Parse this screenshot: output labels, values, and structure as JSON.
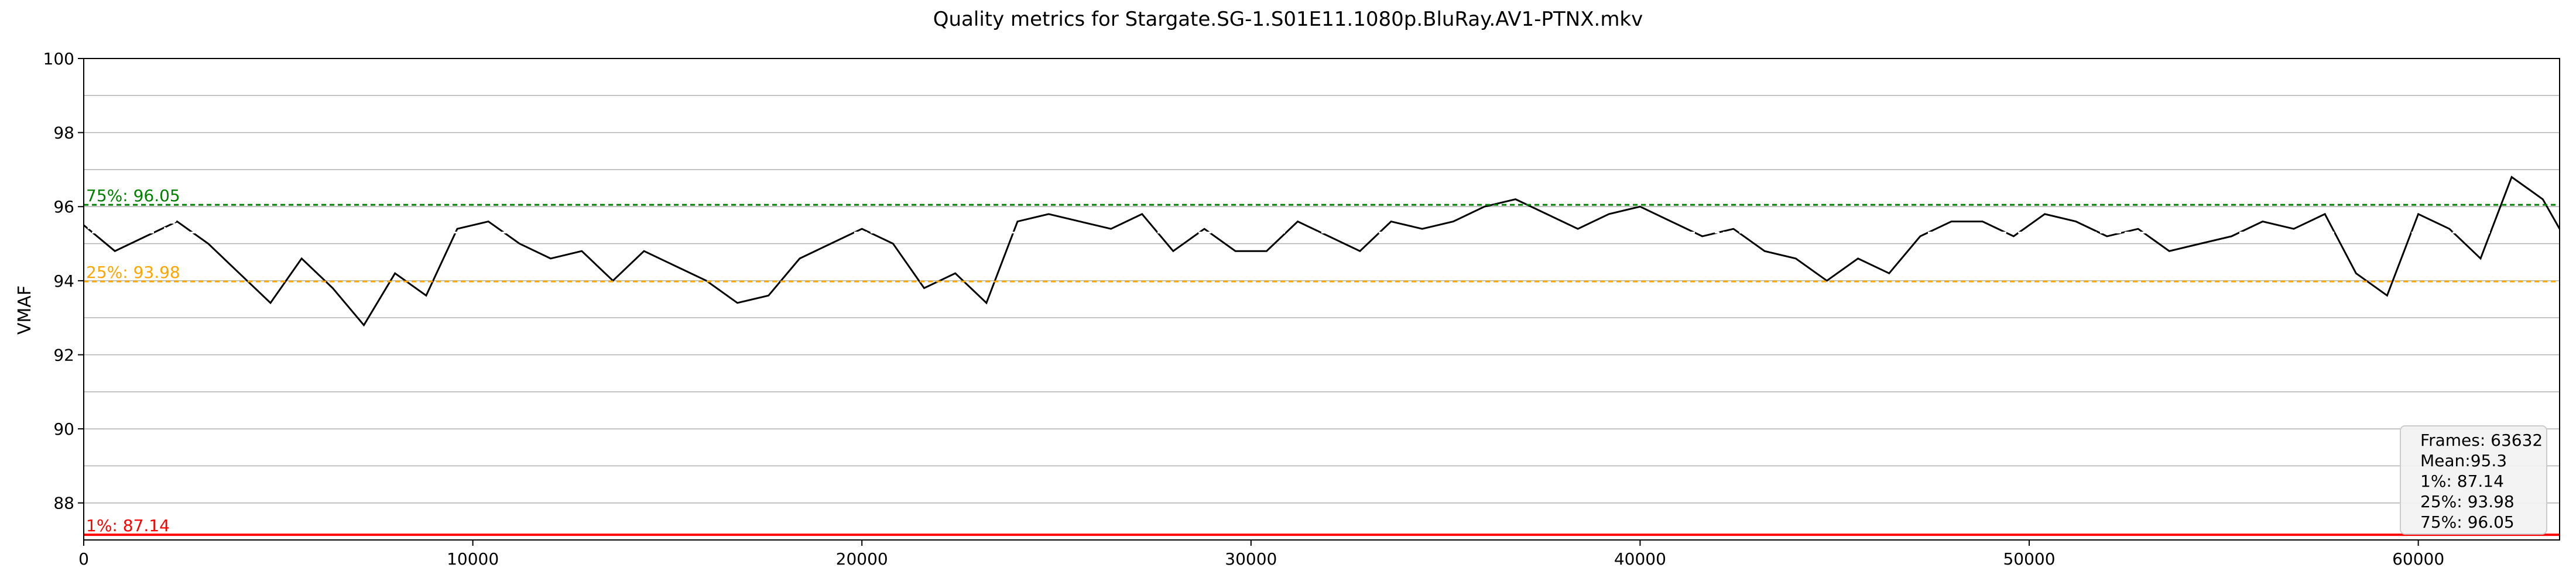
{
  "chart_data": {
    "type": "line",
    "title": "Quality metrics for Stargate.SG-1.S01E11.1080p.BluRay.AV1-PTNX.mkv",
    "xlabel": "",
    "ylabel": "VMAF",
    "xlim": [
      0,
      63632
    ],
    "ylim": [
      87,
      100
    ],
    "x_ticks": [
      0,
      10000,
      20000,
      30000,
      40000,
      50000,
      60000
    ],
    "y_ticks": [
      88,
      90,
      92,
      94,
      96,
      98,
      100
    ],
    "grid": true,
    "series": [
      {
        "color": "#000000",
        "x": [
          0,
          800,
          1600,
          2400,
          3200,
          4000,
          4800,
          5600,
          6400,
          7200,
          8000,
          8800,
          9600,
          10400,
          11200,
          12000,
          12800,
          13600,
          14400,
          15200,
          16000,
          16800,
          17600,
          18400,
          19200,
          20000,
          20800,
          21600,
          22400,
          23200,
          24000,
          24800,
          25600,
          26400,
          27200,
          28000,
          28800,
          29600,
          30400,
          31200,
          32000,
          32800,
          33600,
          34400,
          35200,
          36000,
          36800,
          37600,
          38400,
          39200,
          40000,
          40800,
          41600,
          42400,
          43200,
          44000,
          44800,
          45600,
          46400,
          47200,
          48000,
          48800,
          49600,
          50400,
          51200,
          52000,
          52800,
          53600,
          54400,
          55200,
          56000,
          56800,
          57600,
          58400,
          59200,
          60000,
          60800,
          61600,
          62400,
          63200,
          63632
        ],
        "y": [
          95.5,
          94.8,
          95.2,
          95.6,
          95.0,
          94.2,
          93.4,
          94.6,
          93.8,
          92.8,
          94.2,
          93.6,
          95.4,
          95.6,
          95.0,
          94.6,
          94.8,
          94.0,
          94.8,
          94.4,
          94.0,
          93.4,
          93.6,
          94.6,
          95.0,
          95.4,
          95.0,
          93.8,
          94.2,
          93.4,
          95.6,
          95.8,
          95.6,
          95.4,
          95.8,
          94.8,
          95.4,
          94.8,
          94.8,
          95.6,
          95.2,
          94.8,
          95.6,
          95.4,
          95.6,
          96.0,
          96.2,
          95.8,
          95.4,
          95.8,
          96.0,
          95.6,
          95.2,
          95.4,
          94.8,
          94.6,
          94.0,
          94.6,
          94.2,
          95.2,
          95.6,
          95.6,
          95.2,
          95.8,
          95.6,
          95.2,
          95.4,
          94.8,
          95.0,
          95.2,
          95.6,
          95.4,
          95.8,
          94.2,
          93.6,
          95.8,
          95.4,
          94.6,
          96.8,
          96.2,
          95.4
        ]
      }
    ],
    "reference_lines": [
      {
        "label": "1%: 87.14",
        "value": 87.14,
        "color": "#ff0000",
        "style": "solid"
      },
      {
        "label": "25%: 93.98",
        "value": 93.98,
        "color": "#ffa500",
        "style": "dashed"
      },
      {
        "label": "Mean: 95.3",
        "value": 95.3,
        "color": "#ffffff",
        "style": "dashed"
      },
      {
        "label": "75%: 96.05",
        "value": 96.05,
        "color": "#008000",
        "style": "dashed"
      }
    ],
    "stats_box": {
      "lines": [
        "Frames: 63632",
        "Mean:95.3",
        "1%: 87.14",
        "25%: 93.98",
        "75%: 96.05"
      ],
      "position": "bottom-right"
    }
  }
}
